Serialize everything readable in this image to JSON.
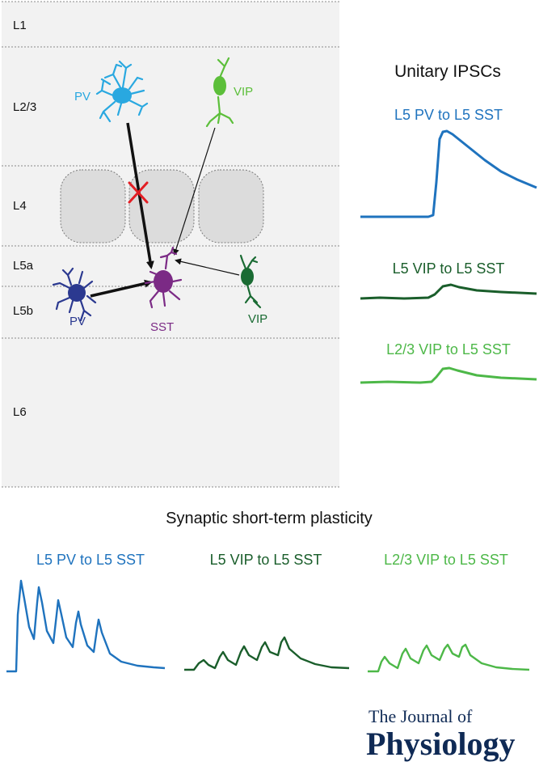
{
  "layers": [
    {
      "id": "l1",
      "label": "L1"
    },
    {
      "id": "l23",
      "label": "L2/3"
    },
    {
      "id": "l4",
      "label": "L4"
    },
    {
      "id": "l5a",
      "label": "L5a"
    },
    {
      "id": "l5b",
      "label": "L5b"
    },
    {
      "id": "l6",
      "label": "L6"
    }
  ],
  "cells": {
    "pv_l23": "PV",
    "vip_l23": "VIP",
    "pv_l5": "PV",
    "sst_l5": "SST",
    "vip_l5": "VIP"
  },
  "unitary": {
    "title": "Unitary IPSCs",
    "traces": [
      {
        "label": "L5 PV to L5 SST",
        "color": "#1f73be"
      },
      {
        "label": "L5 VIP to L5 SST",
        "color": "#1a5e2b"
      },
      {
        "label": "L2/3 VIP to L5 SST",
        "color": "#4db848"
      }
    ]
  },
  "plasticity": {
    "title": "Synaptic short-term plasticity",
    "traces": [
      {
        "label": "L5 PV to L5 SST",
        "color": "#1f73be"
      },
      {
        "label": "L5 VIP to L5 SST",
        "color": "#1a5e2b"
      },
      {
        "label": "L2/3 VIP to L5 SST",
        "color": "#4db848"
      }
    ]
  },
  "colors": {
    "pv_l23": "#29a8e0",
    "vip_l23": "#5cbf3a",
    "pv_l5": "#2b3990",
    "sst": "#7b2a85",
    "vip_l5": "#1a6b33",
    "block": "#e31e24"
  },
  "journal": {
    "line1": "The Journal of",
    "line2": "Physiology"
  }
}
